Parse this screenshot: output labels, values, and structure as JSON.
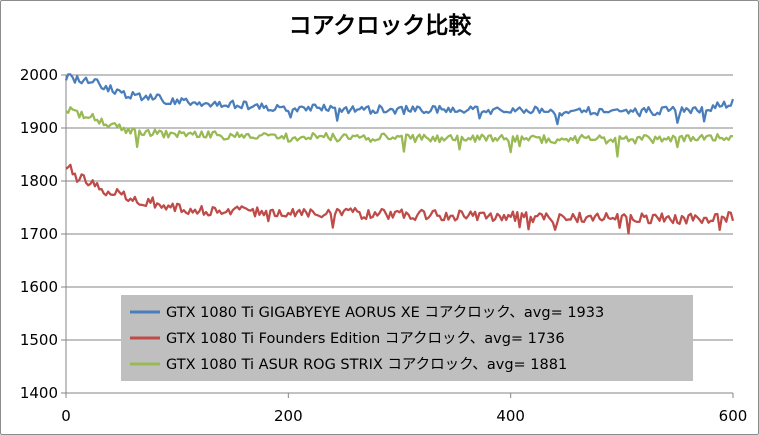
{
  "chart_data": {
    "type": "line",
    "title": "コアクロック比較",
    "xlabel": "",
    "ylabel": "",
    "xlim": [
      0,
      600
    ],
    "ylim": [
      1400,
      2000
    ],
    "x_ticks": [
      0,
      200,
      400,
      600
    ],
    "y_ticks": [
      1400,
      1500,
      1600,
      1700,
      1800,
      1900,
      2000
    ],
    "grid": "horizontal",
    "legend_position": "bottom-center",
    "series": [
      {
        "name": "GTX 1080 Ti GIGABYEYE  AORUS XE コアクロック、avg= 1933",
        "color": "#4a7ebb",
        "x": [
          0,
          25,
          50,
          75,
          100,
          125,
          150,
          175,
          200,
          225,
          250,
          275,
          300,
          325,
          350,
          375,
          400,
          425,
          450,
          475,
          500,
          525,
          550,
          575,
          600
        ],
        "values": [
          1995,
          1988,
          1965,
          1958,
          1950,
          1945,
          1944,
          1940,
          1938,
          1939,
          1936,
          1935,
          1934,
          1935,
          1933,
          1934,
          1932,
          1933,
          1931,
          1932,
          1930,
          1932,
          1933,
          1934,
          1950
        ]
      },
      {
        "name": "GTX 1080 Ti Founders Edition コアクロック、avg= 1736",
        "color": "#be4b48",
        "x": [
          0,
          25,
          50,
          75,
          100,
          125,
          150,
          175,
          200,
          225,
          250,
          275,
          300,
          325,
          350,
          375,
          400,
          425,
          450,
          475,
          500,
          525,
          550,
          575,
          600
        ],
        "values": [
          1828,
          1790,
          1772,
          1760,
          1752,
          1745,
          1744,
          1743,
          1742,
          1741,
          1740,
          1738,
          1737,
          1736,
          1735,
          1734,
          1733,
          1732,
          1731,
          1730,
          1729,
          1730,
          1729,
          1730,
          1733
        ]
      },
      {
        "name": "GTX 1080 Ti ASUR ROG STRIX コアクロック、avg= 1881",
        "color": "#98b954",
        "x": [
          0,
          25,
          50,
          75,
          100,
          125,
          150,
          175,
          200,
          225,
          250,
          275,
          300,
          325,
          350,
          375,
          400,
          425,
          450,
          475,
          500,
          525,
          550,
          575,
          600
        ],
        "values": [
          1935,
          1918,
          1898,
          1892,
          1888,
          1886,
          1885,
          1884,
          1883,
          1883,
          1882,
          1882,
          1881,
          1881,
          1880,
          1880,
          1880,
          1879,
          1879,
          1879,
          1878,
          1879,
          1879,
          1879,
          1882
        ]
      }
    ]
  }
}
